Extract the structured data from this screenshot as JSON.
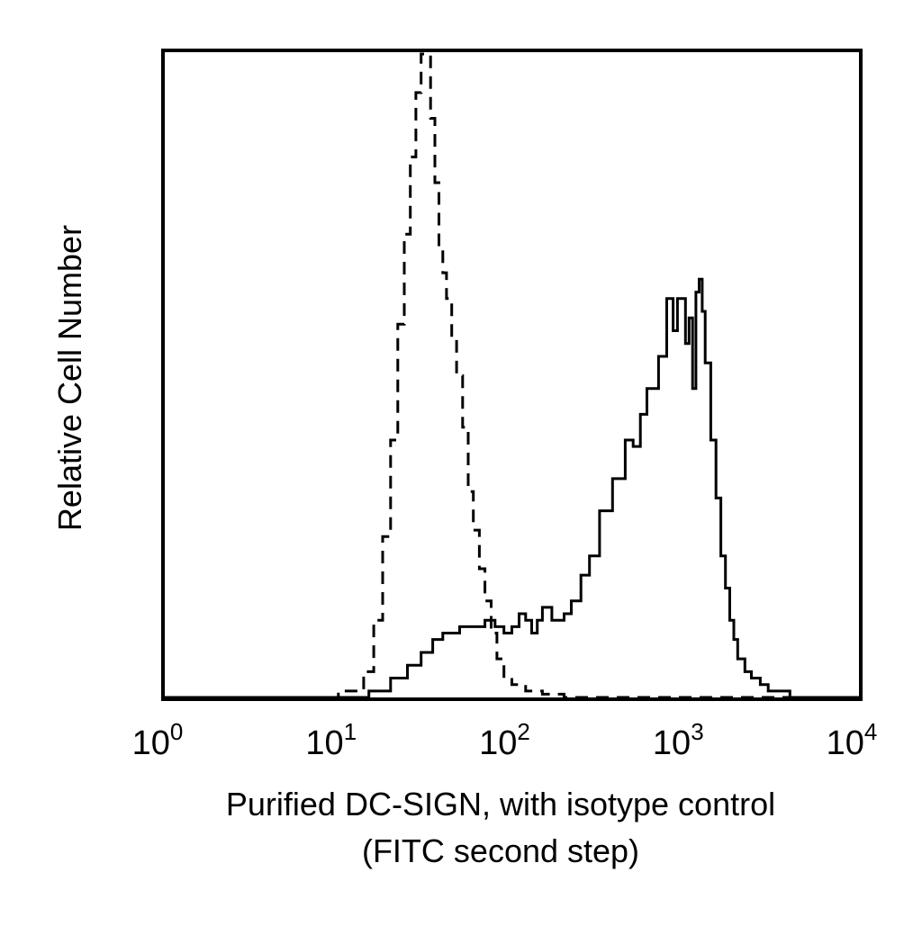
{
  "chart_data": {
    "type": "line",
    "title": "",
    "xlabel": "Purified DC-SIGN, with isotype control",
    "xlabel_line2": "(FITC second step)",
    "ylabel": "Relative Cell Number",
    "x_scale": "log",
    "xlim": [
      1,
      10000
    ],
    "ylim": [
      0,
      100
    ],
    "grid": false,
    "legend": "none",
    "x_ticks": [
      {
        "base": "10",
        "exp": "0",
        "value": 1
      },
      {
        "base": "10",
        "exp": "1",
        "value": 10
      },
      {
        "base": "10",
        "exp": "2",
        "value": 100
      },
      {
        "base": "10",
        "exp": "3",
        "value": 1000
      },
      {
        "base": "10",
        "exp": "4",
        "value": 10000
      }
    ],
    "series": [
      {
        "style": "dashed",
        "color": "#000000",
        "points": [
          [
            1,
            0
          ],
          [
            9,
            0
          ],
          [
            10,
            1
          ],
          [
            12,
            1
          ],
          [
            14,
            4
          ],
          [
            16,
            12
          ],
          [
            18,
            25
          ],
          [
            20,
            40
          ],
          [
            22,
            58
          ],
          [
            24,
            72
          ],
          [
            26,
            84
          ],
          [
            28,
            94
          ],
          [
            30,
            100
          ],
          [
            32,
            100
          ],
          [
            34,
            90
          ],
          [
            36,
            80
          ],
          [
            38,
            70
          ],
          [
            40,
            66
          ],
          [
            42,
            62
          ],
          [
            45,
            56
          ],
          [
            48,
            50
          ],
          [
            52,
            42
          ],
          [
            56,
            32
          ],
          [
            60,
            26
          ],
          [
            65,
            20
          ],
          [
            70,
            15
          ],
          [
            76,
            10
          ],
          [
            82,
            6
          ],
          [
            90,
            3
          ],
          [
            100,
            2
          ],
          [
            120,
            1
          ],
          [
            150,
            0.5
          ],
          [
            200,
            0
          ],
          [
            10000,
            0
          ]
        ]
      },
      {
        "style": "solid",
        "color": "#000000",
        "points": [
          [
            1,
            0
          ],
          [
            10,
            0
          ],
          [
            15,
            1
          ],
          [
            20,
            3
          ],
          [
            25,
            5
          ],
          [
            30,
            7
          ],
          [
            35,
            9
          ],
          [
            40,
            10
          ],
          [
            50,
            11
          ],
          [
            60,
            11
          ],
          [
            70,
            12
          ],
          [
            80,
            11
          ],
          [
            90,
            10
          ],
          [
            100,
            11
          ],
          [
            110,
            13
          ],
          [
            120,
            12
          ],
          [
            130,
            10
          ],
          [
            140,
            12
          ],
          [
            150,
            14
          ],
          [
            170,
            12
          ],
          [
            200,
            13
          ],
          [
            220,
            15
          ],
          [
            250,
            19
          ],
          [
            280,
            22
          ],
          [
            320,
            29
          ],
          [
            380,
            34
          ],
          [
            450,
            40
          ],
          [
            500,
            39
          ],
          [
            550,
            44
          ],
          [
            600,
            48
          ],
          [
            700,
            53
          ],
          [
            780,
            62
          ],
          [
            850,
            57
          ],
          [
            900,
            62
          ],
          [
            1000,
            55
          ],
          [
            1050,
            59
          ],
          [
            1100,
            48
          ],
          [
            1150,
            63
          ],
          [
            1200,
            65
          ],
          [
            1250,
            60
          ],
          [
            1300,
            52
          ],
          [
            1400,
            40
          ],
          [
            1500,
            31
          ],
          [
            1600,
            22
          ],
          [
            1700,
            17
          ],
          [
            1800,
            12
          ],
          [
            1900,
            9
          ],
          [
            2000,
            6
          ],
          [
            2200,
            4
          ],
          [
            2400,
            3
          ],
          [
            2700,
            2
          ],
          [
            3000,
            1
          ],
          [
            3500,
            1
          ],
          [
            4000,
            0
          ],
          [
            10000,
            0
          ]
        ]
      }
    ]
  }
}
